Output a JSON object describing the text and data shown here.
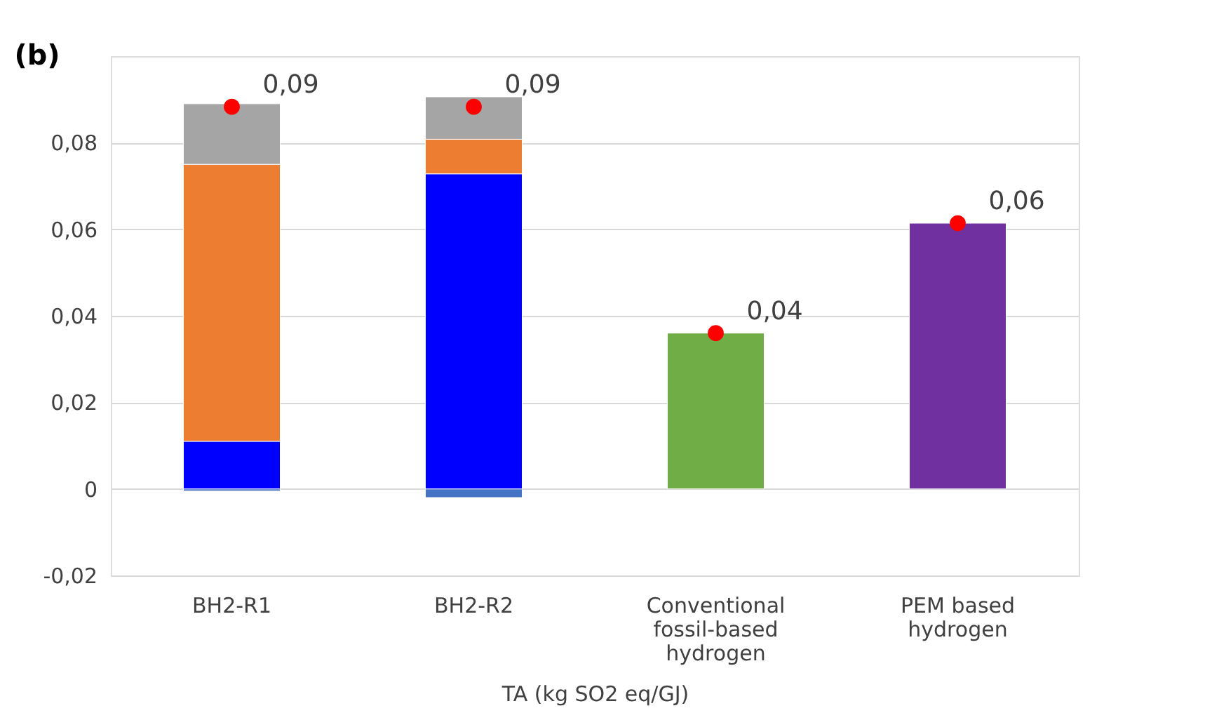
{
  "chart_data": {
    "type": "bar",
    "stacked": true,
    "title": "(b)",
    "xlabel": "TA (kg SO2 eq/GJ)",
    "categories": [
      "BH2-R1",
      "BH2-R2",
      "Conventional fossil-based hydrogen",
      "PEM based hydrogen"
    ],
    "series": [
      {
        "color": "#4472c4",
        "values": [
          -0.0005,
          -0.002,
          null,
          null
        ]
      },
      {
        "color": "#0000ff",
        "values": [
          0.011,
          0.0728,
          null,
          null
        ]
      },
      {
        "color": "#ed7d31",
        "values": [
          0.064,
          0.008,
          null,
          null
        ]
      },
      {
        "color": "#a5a5a5",
        "values": [
          0.014,
          0.0098,
          null,
          null
        ]
      },
      {
        "color": "#70ad47",
        "values": [
          null,
          null,
          0.036,
          null
        ]
      },
      {
        "color": "#7030a0",
        "values": [
          null,
          null,
          null,
          0.0614
        ]
      },
      {
        "type": "scatter",
        "color": "#ff0000",
        "marker": "circle",
        "values": [
          0.0883,
          0.0883,
          0.036,
          0.0614
        ],
        "value_labels": [
          "0,09",
          "0,09",
          "0,04",
          "0,06"
        ]
      }
    ],
    "ylim": [
      -0.02,
      0.1
    ],
    "yticks": [
      {
        "value": -0.02,
        "label": "-0,02"
      },
      0,
      {
        "value": 0.02,
        "label": "0,02"
      },
      {
        "value": 0.04,
        "label": "0,04"
      },
      {
        "value": 0.06,
        "label": "0,06"
      },
      {
        "value": 0.08,
        "label": "0,08"
      }
    ],
    "grid": "y",
    "legend": false
  }
}
